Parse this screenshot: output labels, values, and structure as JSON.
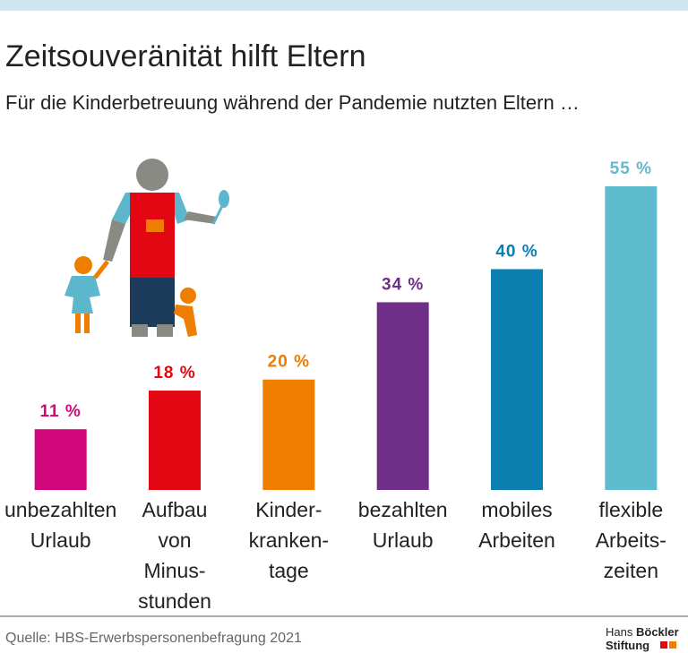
{
  "chart_data": {
    "type": "bar",
    "title": "Zeitsouveränität hilft Eltern",
    "subtitle": "Für die Kinderbetreuung während der Pandemie nutzten Eltern …",
    "categories": [
      [
        "unbezahlten",
        "Urlaub"
      ],
      [
        "Aufbau",
        "von",
        "Minus-",
        "stunden"
      ],
      [
        "Kinder-",
        "kranken-",
        "tage"
      ],
      [
        "bezahlten",
        "Urlaub"
      ],
      [
        "mobiles",
        "Arbeiten"
      ],
      [
        "flexible",
        "Arbeits-",
        "zeiten"
      ]
    ],
    "values": [
      11,
      18,
      20,
      34,
      40,
      55
    ],
    "value_labels": [
      "11 %",
      "18 %",
      "20 %",
      "34 %",
      "40 %",
      "55 %"
    ],
    "colors": [
      "#d1077c",
      "#e30613",
      "#ef7d00",
      "#6f2f88",
      "#0a7fb0",
      "#5fbccf"
    ],
    "source": "Quelle: HBS-Erwerbspersonenbefragung 2021",
    "logo": [
      "Hans",
      "Böckler",
      "Stiftung"
    ]
  }
}
